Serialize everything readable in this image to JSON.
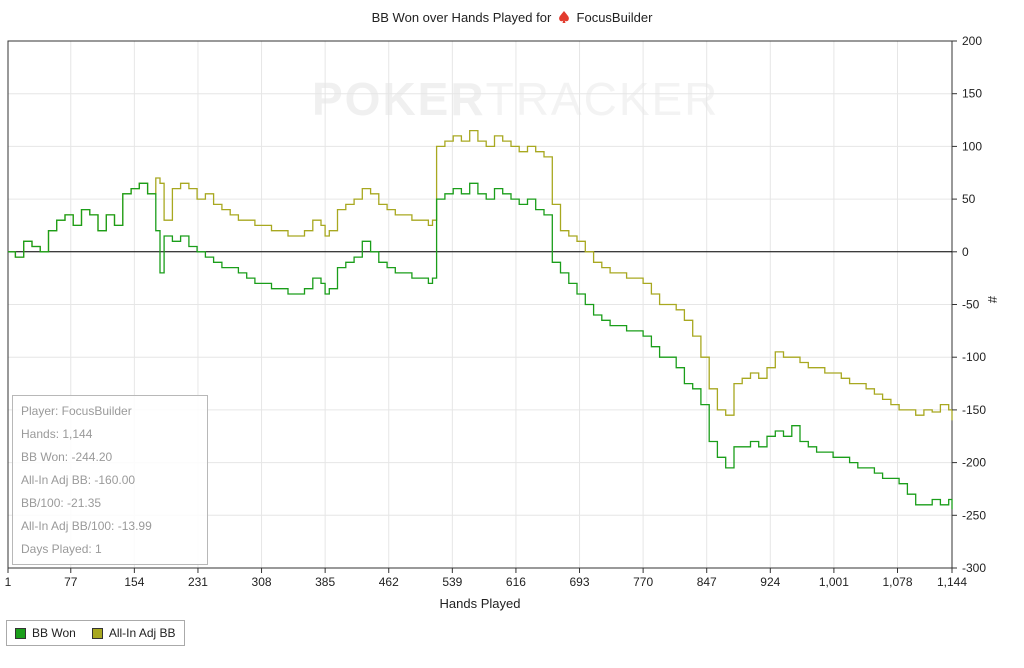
{
  "watermark": {
    "part1": "POKER",
    "part2": "TRACKER"
  },
  "stats": {
    "player": "Player: FocusBuilder",
    "hands": "Hands: 1,144",
    "bb_won": "BB Won: -244.20",
    "allin_adj_bb": "All-In Adj BB: -160.00",
    "bb_per_100": "BB/100: -21.35",
    "allin_adj_bb_per_100": "All-In Adj BB/100: -13.99",
    "days_played": "Days Played: 1"
  },
  "chart_data": {
    "type": "line",
    "title_prefix": "BB Won over Hands Played for",
    "title_player": "FocusBuilder",
    "xlabel": "Hands Played",
    "ylabel": "#",
    "xlim": [
      1,
      1144
    ],
    "ylim": [
      -300,
      200
    ],
    "x_ticks": [
      1,
      77,
      154,
      231,
      308,
      385,
      462,
      539,
      616,
      693,
      770,
      847,
      924,
      1001,
      1078,
      1144
    ],
    "x_tick_labels": [
      "1",
      "77",
      "154",
      "231",
      "308",
      "385",
      "462",
      "539",
      "616",
      "693",
      "770",
      "847",
      "924",
      "1,001",
      "1,078",
      "1,144"
    ],
    "y_ticks": [
      200,
      150,
      100,
      50,
      0,
      -50,
      -100,
      -150,
      -200,
      -250,
      -300
    ],
    "y_tick_labels": [
      "200",
      "150",
      "100",
      "50",
      "0",
      "-50",
      "-100",
      "-150",
      "-200",
      "-250",
      "-300"
    ],
    "grid": true,
    "legend_position": "bottom-left",
    "colors": {
      "bb_won": "#1a9e1a",
      "allin_adj": "#a8a820",
      "zero_line": "#000000"
    },
    "series": [
      {
        "name": "BB Won",
        "x": [
          1,
          10,
          20,
          30,
          40,
          50,
          60,
          70,
          80,
          90,
          100,
          110,
          120,
          130,
          140,
          150,
          160,
          170,
          180,
          185,
          190,
          200,
          210,
          220,
          230,
          240,
          250,
          260,
          270,
          280,
          290,
          300,
          310,
          320,
          330,
          340,
          350,
          360,
          370,
          380,
          385,
          390,
          400,
          410,
          420,
          430,
          440,
          450,
          460,
          470,
          480,
          490,
          500,
          510,
          515,
          520,
          530,
          540,
          550,
          560,
          570,
          580,
          590,
          600,
          610,
          620,
          630,
          640,
          650,
          660,
          670,
          680,
          690,
          700,
          710,
          720,
          730,
          740,
          750,
          760,
          770,
          780,
          790,
          800,
          810,
          820,
          830,
          840,
          850,
          860,
          870,
          880,
          890,
          900,
          910,
          920,
          930,
          940,
          950,
          960,
          970,
          980,
          990,
          1000,
          1010,
          1020,
          1030,
          1040,
          1050,
          1060,
          1070,
          1080,
          1090,
          1100,
          1110,
          1120,
          1130,
          1140,
          1144
        ],
        "y": [
          0,
          -5,
          10,
          5,
          0,
          20,
          30,
          35,
          25,
          40,
          35,
          20,
          35,
          25,
          55,
          60,
          65,
          55,
          20,
          -20,
          15,
          10,
          15,
          5,
          0,
          -5,
          -10,
          -15,
          -15,
          -20,
          -25,
          -30,
          -30,
          -35,
          -35,
          -40,
          -40,
          -35,
          -25,
          -30,
          -40,
          -35,
          -15,
          -10,
          -5,
          10,
          0,
          -10,
          -15,
          -20,
          -20,
          -25,
          -25,
          -30,
          -25,
          50,
          55,
          60,
          55,
          65,
          55,
          50,
          60,
          55,
          50,
          45,
          50,
          40,
          35,
          -10,
          -20,
          -30,
          -40,
          -50,
          -60,
          -65,
          -70,
          -70,
          -75,
          -75,
          -80,
          -90,
          -100,
          -100,
          -110,
          -125,
          -130,
          -145,
          -180,
          -195,
          -205,
          -185,
          -185,
          -180,
          -185,
          -175,
          -170,
          -175,
          -165,
          -180,
          -185,
          -190,
          -190,
          -195,
          -195,
          -200,
          -205,
          -205,
          -210,
          -215,
          -215,
          -220,
          -230,
          -240,
          -240,
          -235,
          -240,
          -235,
          -244.2
        ]
      },
      {
        "name": "All-In Adj BB",
        "x": [
          1,
          10,
          20,
          30,
          40,
          50,
          60,
          70,
          80,
          90,
          100,
          110,
          120,
          130,
          140,
          150,
          160,
          170,
          180,
          185,
          190,
          200,
          210,
          220,
          230,
          240,
          250,
          260,
          270,
          280,
          290,
          300,
          310,
          320,
          330,
          340,
          350,
          360,
          370,
          380,
          385,
          390,
          400,
          410,
          420,
          430,
          440,
          450,
          460,
          470,
          480,
          490,
          500,
          510,
          515,
          520,
          530,
          540,
          550,
          560,
          570,
          580,
          590,
          600,
          610,
          620,
          630,
          640,
          650,
          660,
          670,
          680,
          690,
          700,
          710,
          720,
          730,
          740,
          750,
          760,
          770,
          780,
          790,
          800,
          810,
          820,
          830,
          840,
          850,
          860,
          870,
          880,
          890,
          900,
          910,
          920,
          930,
          940,
          950,
          960,
          970,
          980,
          990,
          1000,
          1010,
          1020,
          1030,
          1040,
          1050,
          1060,
          1070,
          1080,
          1090,
          1100,
          1110,
          1120,
          1130,
          1140,
          1144
        ],
        "y": [
          0,
          -5,
          10,
          5,
          0,
          20,
          30,
          35,
          25,
          40,
          35,
          20,
          35,
          25,
          55,
          60,
          65,
          55,
          70,
          65,
          30,
          60,
          65,
          60,
          50,
          55,
          45,
          40,
          35,
          30,
          30,
          25,
          25,
          20,
          20,
          15,
          15,
          20,
          30,
          25,
          15,
          20,
          40,
          45,
          50,
          60,
          55,
          45,
          40,
          35,
          35,
          30,
          30,
          25,
          30,
          100,
          105,
          110,
          105,
          115,
          105,
          100,
          110,
          105,
          100,
          95,
          100,
          95,
          90,
          45,
          20,
          15,
          10,
          0,
          -10,
          -15,
          -20,
          -20,
          -25,
          -25,
          -30,
          -40,
          -50,
          -50,
          -55,
          -65,
          -80,
          -100,
          -130,
          -150,
          -155,
          -125,
          -120,
          -115,
          -120,
          -110,
          -95,
          -100,
          -100,
          -105,
          -110,
          -110,
          -115,
          -115,
          -120,
          -125,
          -125,
          -130,
          -135,
          -140,
          -145,
          -150,
          -150,
          -155,
          -150,
          -152,
          -145,
          -150,
          -160
        ]
      }
    ]
  }
}
